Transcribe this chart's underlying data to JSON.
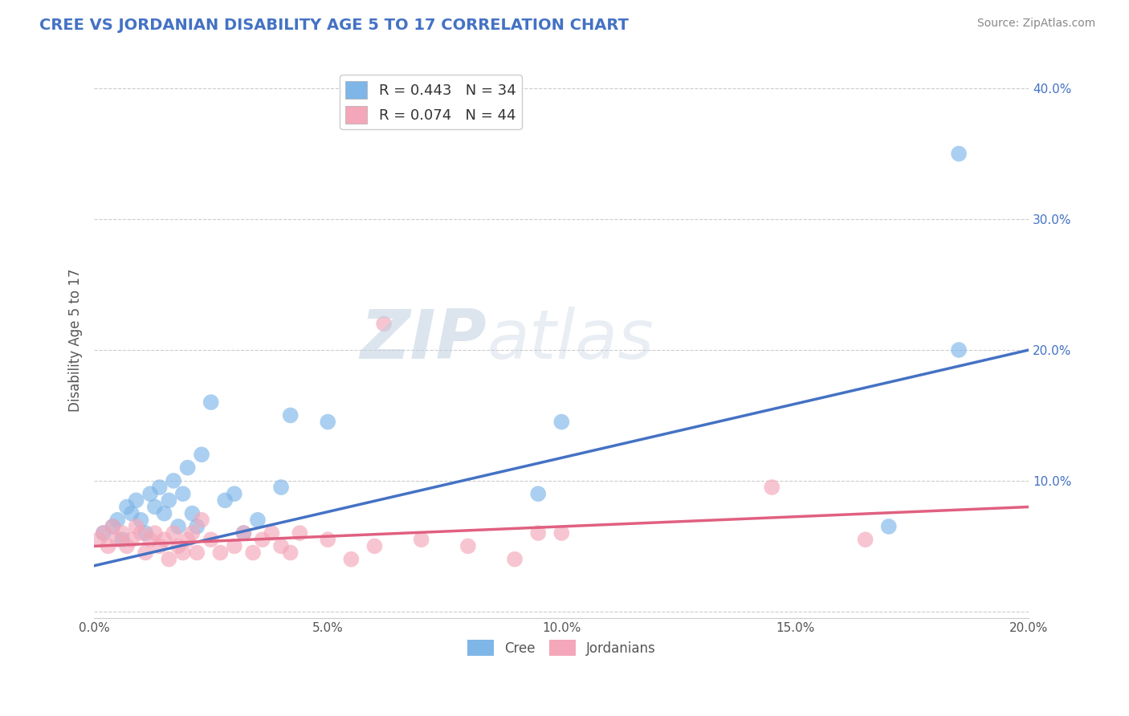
{
  "title": "CREE VS JORDANIAN DISABILITY AGE 5 TO 17 CORRELATION CHART",
  "source": "Source: ZipAtlas.com",
  "ylabel": "Disability Age 5 to 17",
  "xlim": [
    0.0,
    0.2
  ],
  "ylim": [
    -0.005,
    0.42
  ],
  "xticks": [
    0.0,
    0.05,
    0.1,
    0.15,
    0.2
  ],
  "xtick_labels": [
    "0.0%",
    "5.0%",
    "10.0%",
    "15.0%",
    "20.0%"
  ],
  "yticks": [
    0.0,
    0.1,
    0.2,
    0.3,
    0.4
  ],
  "ytick_labels": [
    "",
    "10.0%",
    "20.0%",
    "30.0%",
    "40.0%"
  ],
  "cree_R": 0.443,
  "cree_N": 34,
  "jordan_R": 0.074,
  "jordan_N": 44,
  "cree_color": "#7EB6E8",
  "jordan_color": "#F4A7B9",
  "cree_line_color": "#4472C4",
  "jordan_line_color": "#E06080",
  "background_color": "#FFFFFF",
  "grid_color": "#CCCCCC",
  "title_color": "#4472C4",
  "legend_text_color": "#4472C4",
  "watermark_color": "#C8D8E8",
  "cree_points_x": [
    0.002,
    0.004,
    0.005,
    0.006,
    0.007,
    0.008,
    0.009,
    0.01,
    0.011,
    0.012,
    0.013,
    0.014,
    0.015,
    0.016,
    0.017,
    0.018,
    0.019,
    0.02,
    0.021,
    0.022,
    0.023,
    0.025,
    0.028,
    0.03,
    0.032,
    0.035,
    0.04,
    0.042,
    0.05,
    0.095,
    0.1,
    0.17,
    0.185,
    0.185
  ],
  "cree_points_y": [
    0.06,
    0.065,
    0.07,
    0.055,
    0.08,
    0.075,
    0.085,
    0.07,
    0.06,
    0.09,
    0.08,
    0.095,
    0.075,
    0.085,
    0.1,
    0.065,
    0.09,
    0.11,
    0.075,
    0.065,
    0.12,
    0.16,
    0.085,
    0.09,
    0.06,
    0.07,
    0.095,
    0.15,
    0.145,
    0.09,
    0.145,
    0.065,
    0.35,
    0.2
  ],
  "jordan_points_x": [
    0.001,
    0.002,
    0.003,
    0.004,
    0.005,
    0.006,
    0.007,
    0.008,
    0.009,
    0.01,
    0.011,
    0.012,
    0.013,
    0.014,
    0.015,
    0.016,
    0.017,
    0.018,
    0.019,
    0.02,
    0.021,
    0.022,
    0.023,
    0.025,
    0.027,
    0.03,
    0.032,
    0.034,
    0.036,
    0.038,
    0.04,
    0.042,
    0.044,
    0.05,
    0.055,
    0.06,
    0.062,
    0.07,
    0.08,
    0.09,
    0.095,
    0.1,
    0.145,
    0.165
  ],
  "jordan_points_y": [
    0.055,
    0.06,
    0.05,
    0.065,
    0.055,
    0.06,
    0.05,
    0.055,
    0.065,
    0.06,
    0.045,
    0.055,
    0.06,
    0.05,
    0.055,
    0.04,
    0.06,
    0.05,
    0.045,
    0.055,
    0.06,
    0.045,
    0.07,
    0.055,
    0.045,
    0.05,
    0.06,
    0.045,
    0.055,
    0.06,
    0.05,
    0.045,
    0.06,
    0.055,
    0.04,
    0.05,
    0.22,
    0.055,
    0.05,
    0.04,
    0.06,
    0.06,
    0.095,
    0.055
  ],
  "cree_line_x0": 0.0,
  "cree_line_y0": 0.035,
  "cree_line_x1": 0.2,
  "cree_line_y1": 0.2,
  "jordan_line_x0": 0.0,
  "jordan_line_y0": 0.05,
  "jordan_line_x1": 0.2,
  "jordan_line_y1": 0.08
}
